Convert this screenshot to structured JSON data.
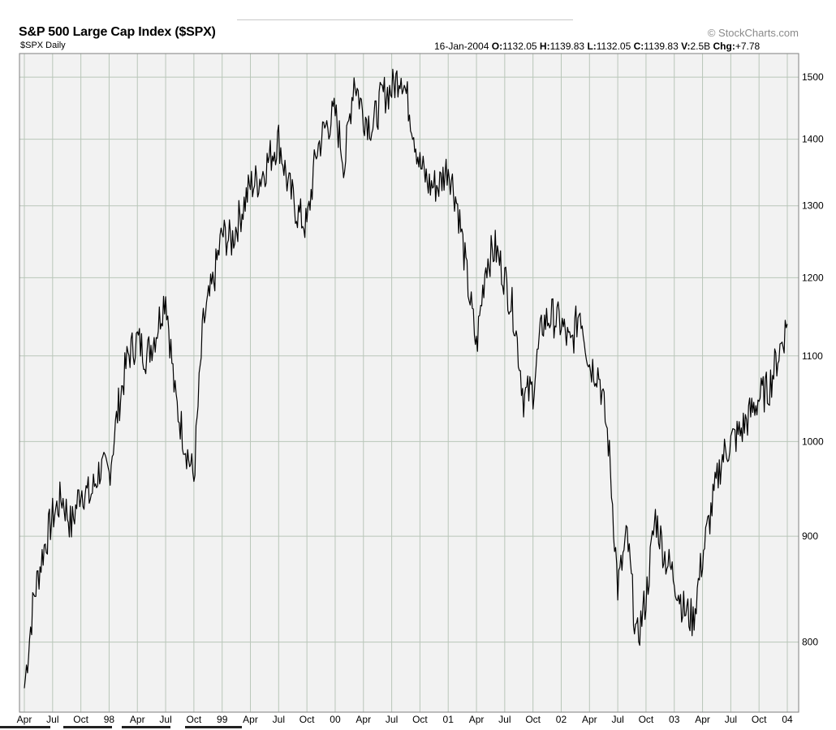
{
  "header": {
    "title": "S&P 500 Large Cap Index ($SPX)",
    "credit": "© StockCharts.com",
    "subtitle": "$SPX Daily",
    "quote": {
      "date": "16-Jan-2004",
      "open_label": "O:",
      "open": "1132.05",
      "high_label": "H:",
      "high": "1139.83",
      "low_label": "L:",
      "low": "1132.05",
      "close_label": "C:",
      "close": "1139.83",
      "volume_label": "V:",
      "volume": "2.5B",
      "change_label": "Chg:",
      "change": "+7.78"
    }
  },
  "chart_data": {
    "type": "line",
    "title": "S&P 500 Large Cap Index ($SPX)",
    "series": [
      {
        "name": "$SPX Daily",
        "x": [
          "1997-04",
          "1997-05",
          "1997-06",
          "1997-07",
          "1997-08",
          "1997-09",
          "1997-10",
          "1997-11",
          "1997-12",
          "1998-01",
          "1998-02",
          "1998-03",
          "1998-04",
          "1998-05",
          "1998-06",
          "1998-07",
          "1998-08",
          "1998-09",
          "1998-10",
          "1998-11",
          "1998-12",
          "1999-01",
          "1999-02",
          "1999-03",
          "1999-04",
          "1999-05",
          "1999-06",
          "1999-07",
          "1999-08",
          "1999-09",
          "1999-10",
          "1999-11",
          "1999-12",
          "2000-01",
          "2000-02",
          "2000-03",
          "2000-04",
          "2000-05",
          "2000-06",
          "2000-07",
          "2000-08",
          "2000-09",
          "2000-10",
          "2000-11",
          "2000-12",
          "2001-01",
          "2001-02",
          "2001-03",
          "2001-04",
          "2001-05",
          "2001-06",
          "2001-07",
          "2001-08",
          "2001-09",
          "2001-10",
          "2001-11",
          "2001-12",
          "2002-01",
          "2002-02",
          "2002-03",
          "2002-04",
          "2002-05",
          "2002-06",
          "2002-07",
          "2002-08",
          "2002-09",
          "2002-10",
          "2002-11",
          "2002-12",
          "2003-01",
          "2003-02",
          "2003-03",
          "2003-04",
          "2003-05",
          "2003-06",
          "2003-07",
          "2003-08",
          "2003-09",
          "2003-10",
          "2003-11",
          "2003-12",
          "2004-01"
        ],
        "values": [
          760,
          840,
          885,
          920,
          940,
          910,
          950,
          940,
          970,
          965,
          1040,
          1100,
          1120,
          1100,
          1130,
          1180,
          1050,
          1000,
          960,
          1140,
          1190,
          1260,
          1250,
          1290,
          1330,
          1340,
          1370,
          1400,
          1330,
          1290,
          1270,
          1380,
          1420,
          1440,
          1360,
          1500,
          1440,
          1420,
          1470,
          1480,
          1510,
          1440,
          1360,
          1330,
          1330,
          1360,
          1300,
          1200,
          1110,
          1220,
          1240,
          1200,
          1150,
          1050,
          1060,
          1140,
          1150,
          1140,
          1110,
          1160,
          1090,
          1080,
          1000,
          850,
          900,
          800,
          840,
          920,
          880,
          860,
          830,
          820,
          880,
          930,
          980,
          1000,
          1010,
          1030,
          1050,
          1060,
          1100,
          1139.83
        ]
      }
    ],
    "x_tick_labels": [
      "Apr",
      "Jul",
      "Oct",
      "98",
      "Apr",
      "Jul",
      "Oct",
      "99",
      "Apr",
      "Jul",
      "Oct",
      "00",
      "Apr",
      "Jul",
      "Oct",
      "01",
      "Apr",
      "Jul",
      "Oct",
      "02",
      "Apr",
      "Jul",
      "Oct",
      "03",
      "Apr",
      "Jul",
      "Oct",
      "04"
    ],
    "y_ticks": [
      800,
      900,
      1000,
      1100,
      1200,
      1300,
      1400,
      1500
    ],
    "y_scale": "log",
    "ylim": [
      740,
      1540
    ],
    "grid": true,
    "colors": {
      "line": "#000000",
      "grid": "#b9c6b9",
      "plot_bg": "#f2f2f2",
      "border": "#7f7f7f"
    }
  }
}
